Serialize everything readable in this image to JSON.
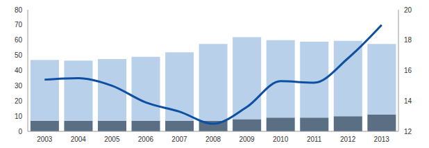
{
  "chart_data": {
    "type": "bar",
    "stacked": true,
    "grid": false,
    "categories": [
      "2003",
      "2004",
      "2005",
      "2006",
      "2007",
      "2008",
      "2009",
      "2010",
      "2011",
      "2012",
      "2013"
    ],
    "ylim": [
      0,
      80
    ],
    "yticks": [
      0,
      10,
      20,
      30,
      40,
      50,
      60,
      70,
      80
    ],
    "y2lim": [
      12,
      20
    ],
    "y2ticks": [
      12,
      14,
      16,
      18,
      20
    ],
    "series": [
      {
        "type": "bar",
        "color": "#5a6e84",
        "values": [
          7,
          7,
          7,
          7,
          7,
          7,
          8,
          9,
          9,
          10,
          11
        ]
      },
      {
        "type": "bar",
        "color": "#b9d0ea",
        "values": [
          40,
          39.5,
          40.5,
          42,
          45,
          50.5,
          54,
          51,
          50,
          49.5,
          46.5
        ]
      },
      {
        "type": "line",
        "axis": "y2",
        "color": "#0d4fa0",
        "marker": "none",
        "values": [
          15.4,
          15.5,
          15.0,
          13.9,
          13.3,
          12.5,
          13.6,
          15.3,
          15.2,
          16.8,
          19.0
        ]
      }
    ]
  }
}
